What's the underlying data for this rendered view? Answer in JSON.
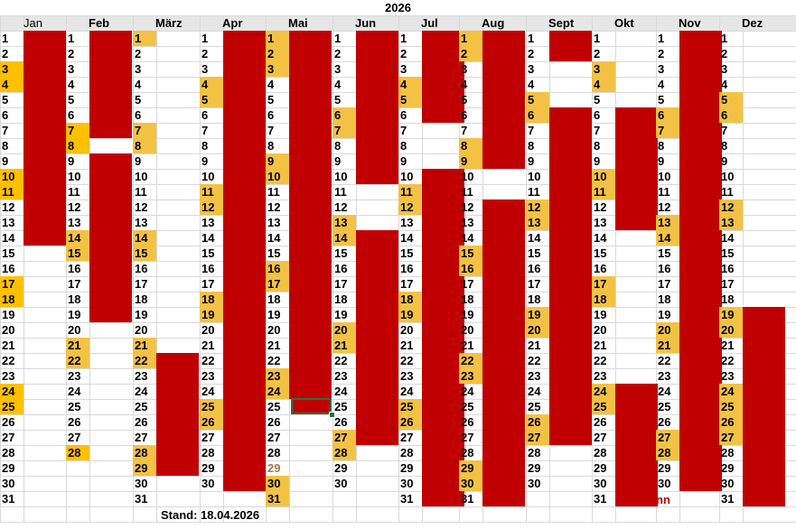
{
  "year": "2026",
  "stand": "Stand: 18.04.2026",
  "note": "nn",
  "colors": {
    "red": "#c00000",
    "yellow": "#f3c244",
    "orange": "#ffc000",
    "header": "#e6e6e6",
    "grid": "#d9d9d9"
  },
  "months": [
    {
      "name": "Jan",
      "days": 31,
      "yellow": [],
      "orange": [
        3,
        4,
        10,
        11,
        17,
        18,
        24,
        25
      ],
      "bars": [
        [
          1,
          14
        ]
      ]
    },
    {
      "name": "Feb",
      "days": 28,
      "yellow": [
        14,
        15,
        21,
        22
      ],
      "orange": [
        7,
        8,
        28
      ],
      "bars": [
        [
          1,
          7
        ],
        [
          9,
          19
        ]
      ]
    },
    {
      "name": "März",
      "days": 31,
      "yellow": [
        1,
        7,
        8,
        14,
        15,
        21,
        22,
        28,
        29
      ],
      "orange": [],
      "bars": [
        [
          22,
          29
        ]
      ]
    },
    {
      "name": "Apr",
      "days": 30,
      "yellow": [
        4,
        5,
        11,
        12,
        18,
        19,
        25,
        26
      ],
      "orange": [],
      "bars": [
        [
          1,
          30
        ]
      ]
    },
    {
      "name": "Mai",
      "days": 31,
      "yellow": [
        1,
        2,
        3,
        9,
        10,
        16,
        17,
        23,
        24,
        30,
        31
      ],
      "orange": [],
      "bars": [
        [
          1,
          24
        ]
      ],
      "brown": [
        29
      ]
    },
    {
      "name": "Jun",
      "days": 30,
      "yellow": [
        6,
        7,
        13,
        14,
        20,
        21,
        27,
        28
      ],
      "orange": [],
      "bars": [
        [
          1,
          10
        ],
        [
          14,
          27
        ]
      ]
    },
    {
      "name": "Jul",
      "days": 31,
      "yellow": [
        4,
        5,
        11,
        12,
        18,
        19,
        25,
        26
      ],
      "orange": [],
      "bars": [
        [
          1,
          6
        ],
        [
          10,
          31
        ]
      ]
    },
    {
      "name": "Aug",
      "days": 31,
      "yellow": [
        1,
        2,
        8,
        9,
        15,
        16,
        22,
        23,
        29,
        30
      ],
      "orange": [],
      "bars": [
        [
          1,
          9
        ],
        [
          12,
          31
        ]
      ]
    },
    {
      "name": "Sept",
      "days": 30,
      "yellow": [
        5,
        6,
        12,
        13,
        19,
        20,
        26,
        27
      ],
      "orange": [],
      "bars": [
        [
          1,
          2
        ],
        [
          6,
          27
        ]
      ]
    },
    {
      "name": "Okt",
      "days": 31,
      "yellow": [
        3,
        4,
        10,
        11,
        17,
        18,
        24,
        25
      ],
      "orange": [],
      "bars": [
        [
          6,
          13
        ],
        [
          24,
          31
        ]
      ]
    },
    {
      "name": "Nov",
      "days": 30,
      "yellow": [
        6,
        7,
        13,
        14,
        20,
        21,
        27,
        28
      ],
      "orange": [],
      "bars": [
        [
          1,
          30
        ]
      ]
    },
    {
      "name": "Dez",
      "days": 31,
      "yellow": [
        5,
        6,
        12,
        13,
        19,
        20,
        24,
        25,
        26,
        27
      ],
      "orange": [],
      "bars": [
        [
          19,
          31
        ]
      ]
    }
  ],
  "selected": {
    "month": "Mai",
    "day": 25
  }
}
